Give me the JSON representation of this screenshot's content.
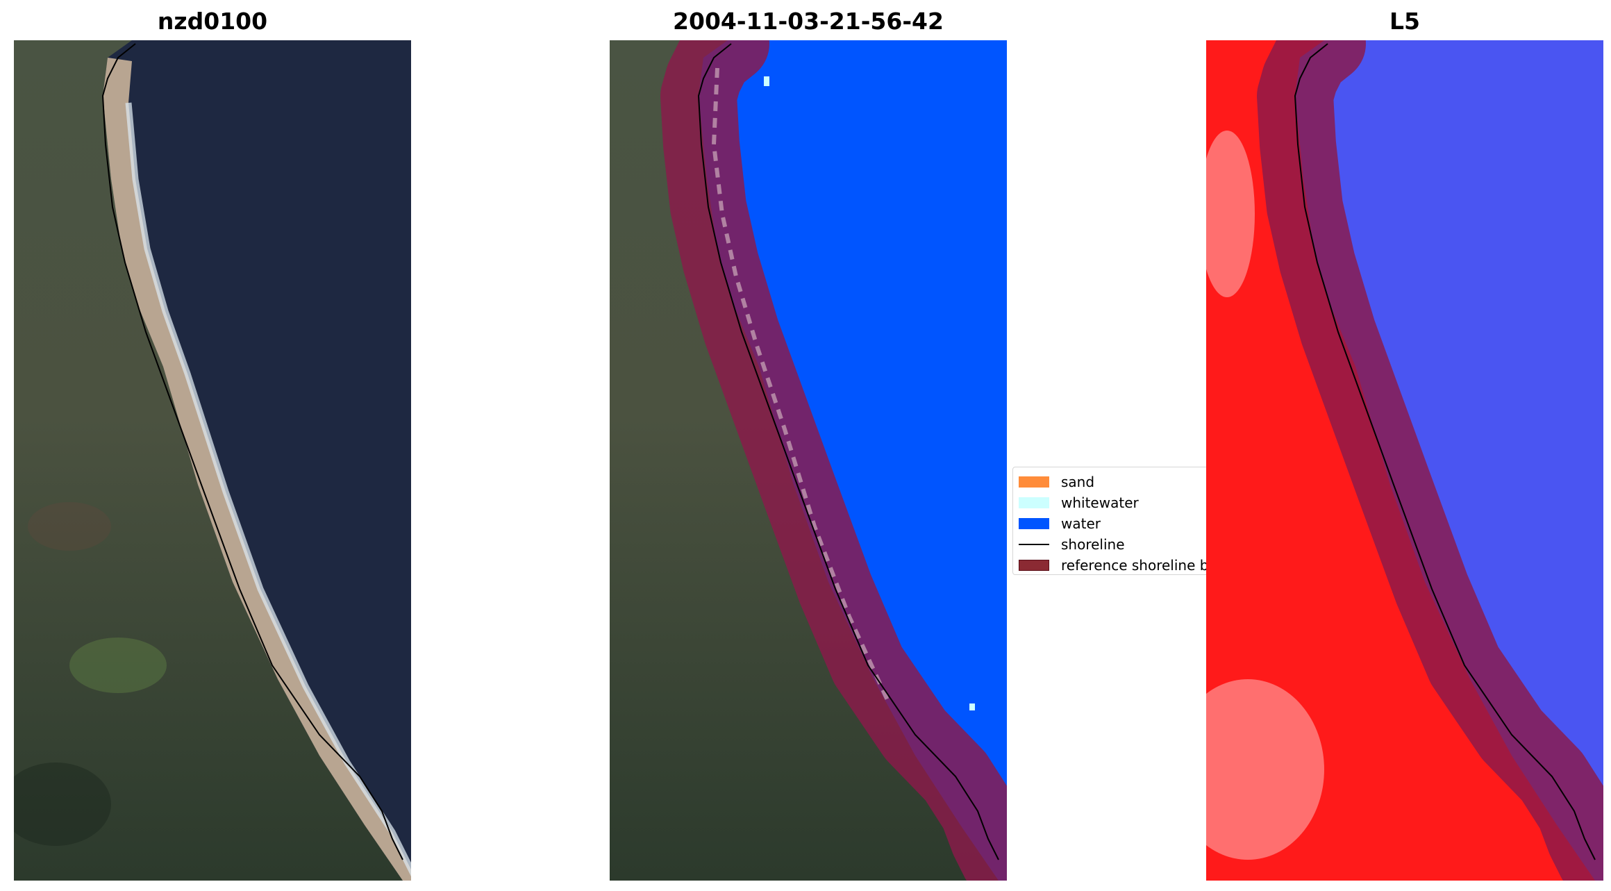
{
  "panels": [
    {
      "title": "nzd0100"
    },
    {
      "title": "2004-11-03-21-56-42"
    },
    {
      "title": "L5"
    }
  ],
  "legend": {
    "items": [
      {
        "label": "sand",
        "color": "#ff8c3a",
        "kind": "patch"
      },
      {
        "label": "whitewater",
        "color": "#ccffff",
        "kind": "patch"
      },
      {
        "label": "water",
        "color": "#0055ff",
        "kind": "patch"
      },
      {
        "label": "shoreline",
        "color": "#000000",
        "kind": "line"
      },
      {
        "label": "reference shoreline buffer",
        "color": "#8b2a33",
        "kind": "patch"
      }
    ]
  },
  "colors": {
    "ocean_dark": "#1d2740",
    "land_green": "#3e4f3a",
    "beach_sand": "#c9b39a",
    "classified_water": "#0055ff",
    "buffer": "#8b1a4a",
    "index_land": "#ff1a1a",
    "index_water": "#4a55f2"
  }
}
